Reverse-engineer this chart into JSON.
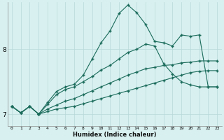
{
  "xlabel": "Humidex (Indice chaleur)",
  "bg_color": "#d8f0f0",
  "line_color": "#1a6b5a",
  "grid_color": "#b8d8d8",
  "xlim": [
    -0.5,
    23.5
  ],
  "ylim": [
    6.82,
    8.72
  ],
  "yticks": [
    7,
    8
  ],
  "xticks": [
    0,
    1,
    2,
    3,
    4,
    5,
    6,
    7,
    8,
    9,
    10,
    11,
    12,
    13,
    14,
    15,
    16,
    17,
    18,
    19,
    20,
    21,
    22,
    23
  ],
  "series": {
    "line1_jagged": {
      "x": [
        0,
        1,
        2,
        3,
        4,
        5,
        6,
        7,
        8,
        9,
        10,
        11,
        12,
        13,
        14,
        15,
        16,
        17,
        18,
        19,
        20,
        21,
        22,
        23
      ],
      "y": [
        7.12,
        7.02,
        7.12,
        7.0,
        7.18,
        7.35,
        7.42,
        7.46,
        7.6,
        7.85,
        8.1,
        8.28,
        8.55,
        8.68,
        8.56,
        8.38,
        8.12,
        8.1,
        8.05,
        8.22,
        8.2,
        8.22,
        7.42,
        7.42
      ]
    },
    "line2_med": {
      "x": [
        0,
        1,
        2,
        3,
        4,
        5,
        6,
        7,
        8,
        9,
        10,
        11,
        12,
        13,
        14,
        15,
        16,
        17,
        18,
        19,
        20,
        21,
        22,
        23
      ],
      "y": [
        7.12,
        7.02,
        7.12,
        7.0,
        7.15,
        7.3,
        7.38,
        7.42,
        7.5,
        7.58,
        7.68,
        7.75,
        7.85,
        7.95,
        8.0,
        8.08,
        8.05,
        7.78,
        7.62,
        7.5,
        7.45,
        7.42,
        7.42,
        7.42
      ]
    },
    "line3_low1": {
      "x": [
        0,
        1,
        2,
        3,
        4,
        5,
        6,
        7,
        8,
        9,
        10,
        11,
        12,
        13,
        14,
        15,
        16,
        17,
        18,
        19,
        20,
        21,
        22,
        23
      ],
      "y": [
        7.12,
        7.02,
        7.12,
        7.0,
        7.08,
        7.14,
        7.2,
        7.24,
        7.3,
        7.36,
        7.42,
        7.48,
        7.54,
        7.6,
        7.65,
        7.7,
        7.72,
        7.75,
        7.76,
        7.79,
        7.8,
        7.82,
        7.82,
        7.82
      ]
    },
    "line4_low2": {
      "x": [
        0,
        1,
        2,
        3,
        4,
        5,
        6,
        7,
        8,
        9,
        10,
        11,
        12,
        13,
        14,
        15,
        16,
        17,
        18,
        19,
        20,
        21,
        22,
        23
      ],
      "y": [
        7.12,
        7.02,
        7.12,
        7.0,
        7.04,
        7.08,
        7.1,
        7.12,
        7.16,
        7.2,
        7.24,
        7.28,
        7.32,
        7.36,
        7.4,
        7.44,
        7.48,
        7.52,
        7.56,
        7.6,
        7.64,
        7.66,
        7.67,
        7.67
      ]
    }
  }
}
